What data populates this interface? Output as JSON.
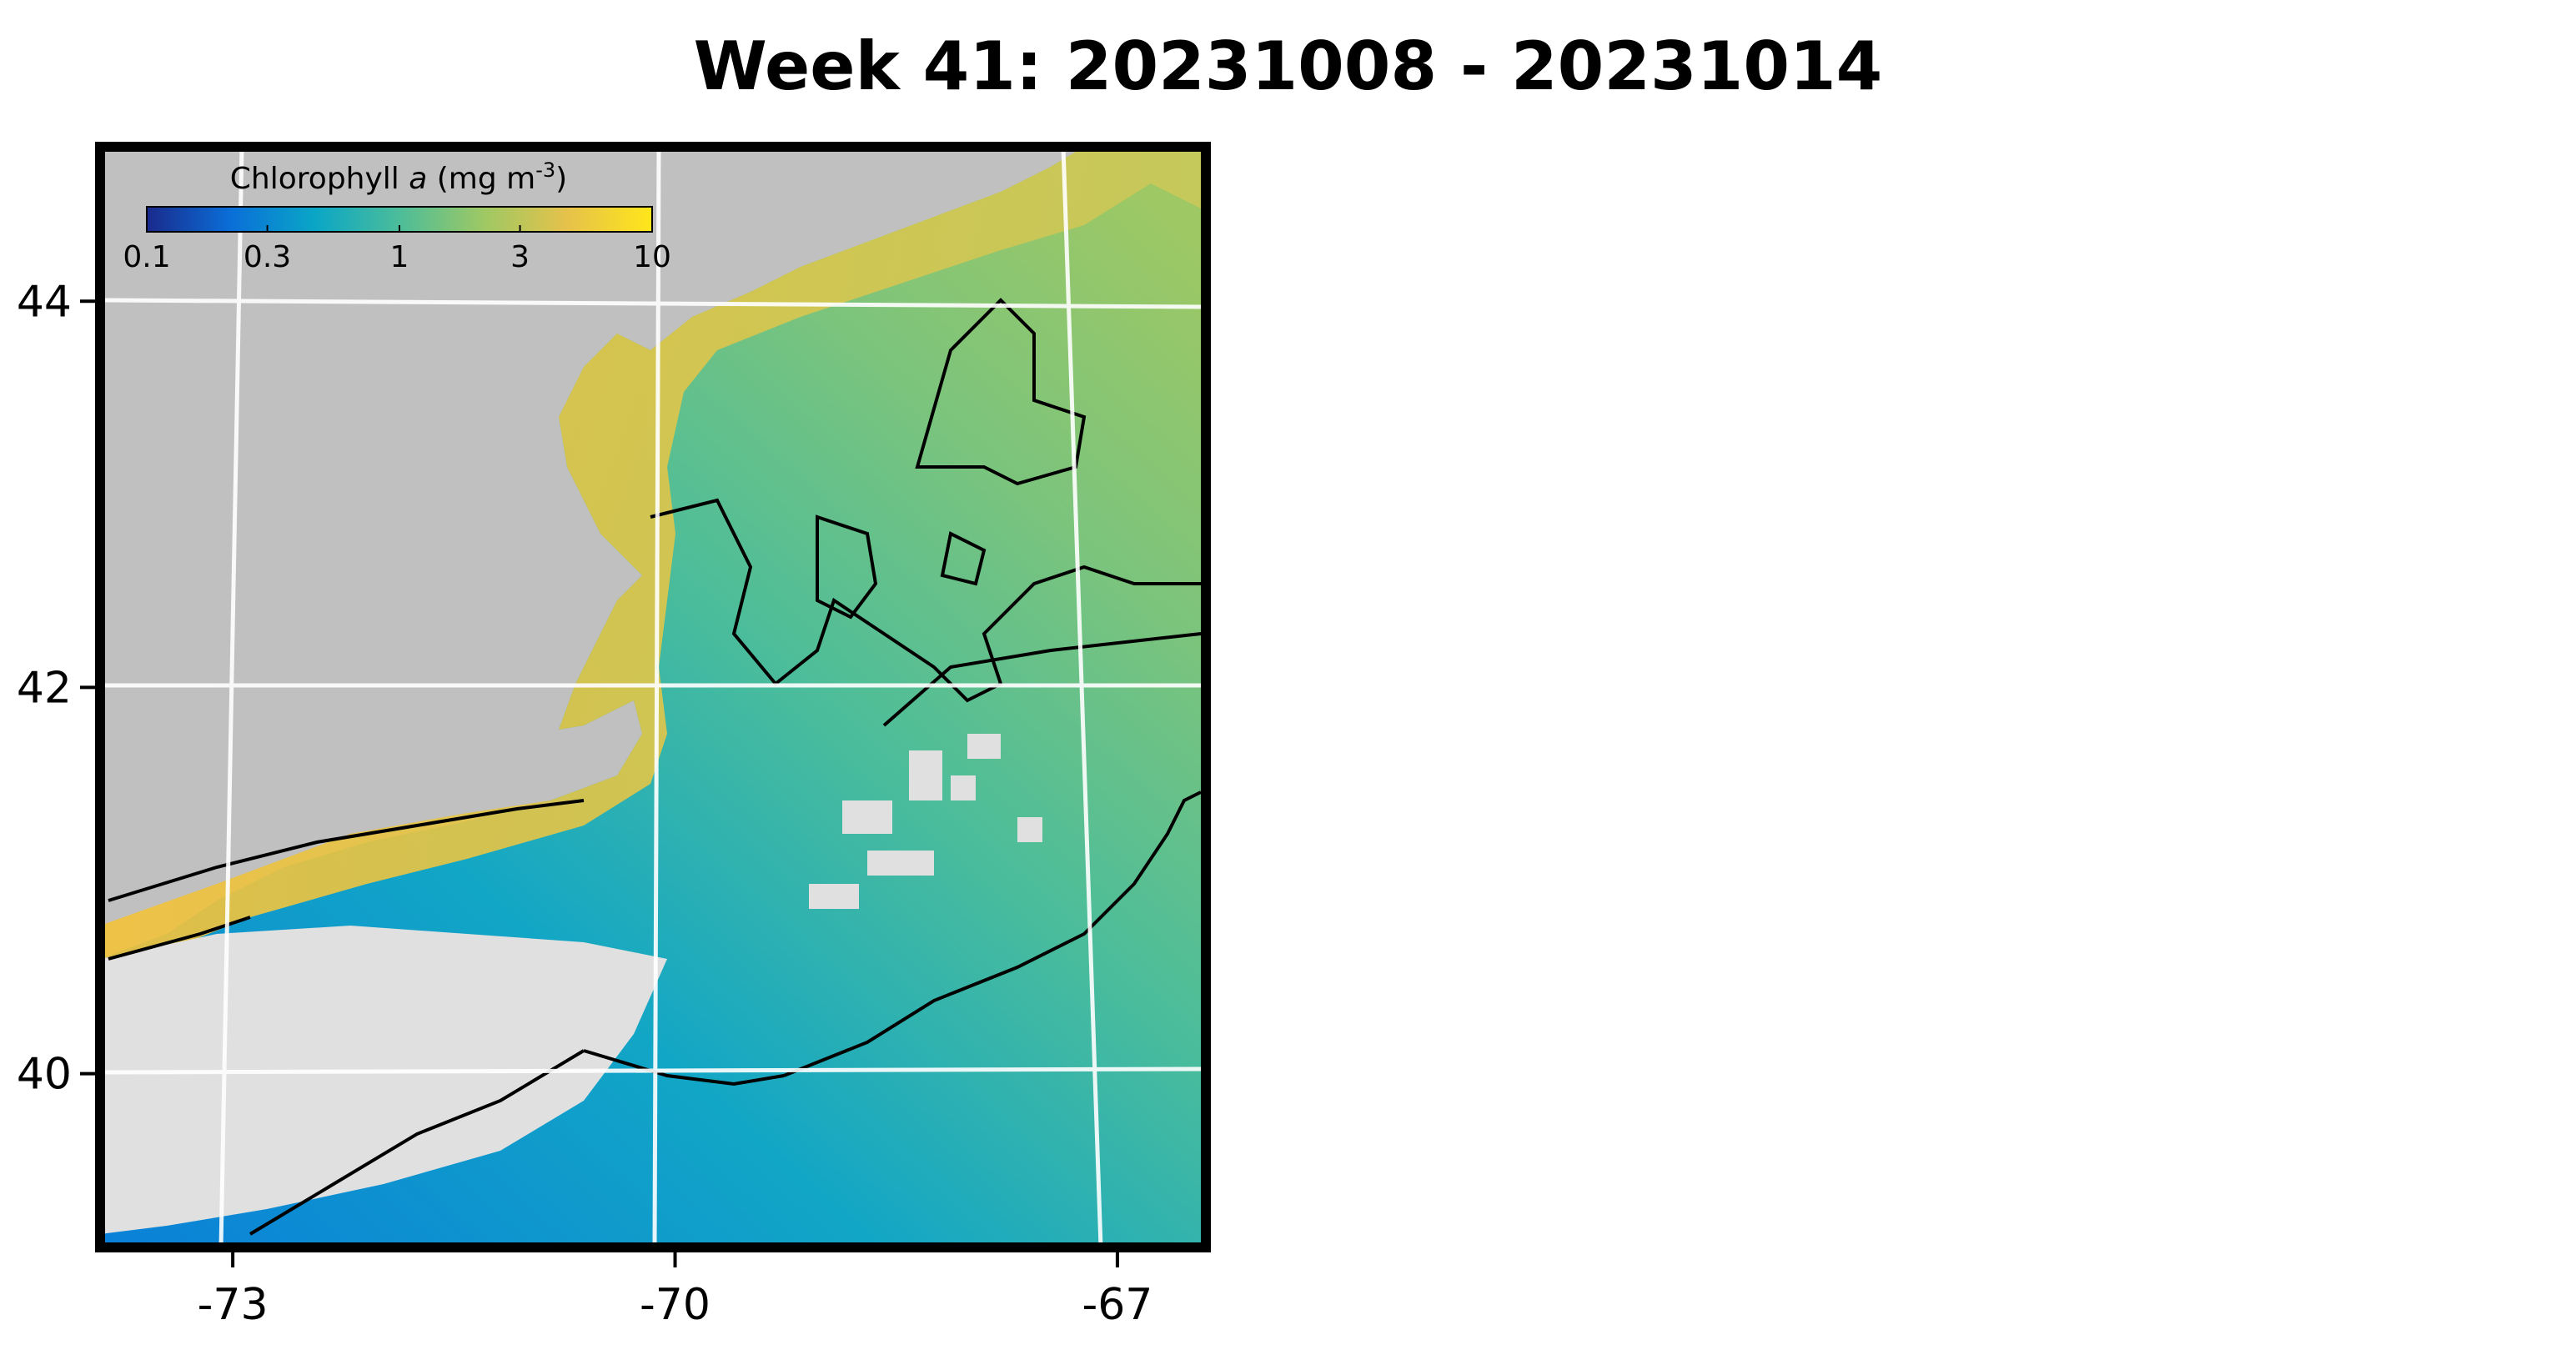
{
  "title": "Week 41: 20231008 - 20231014",
  "colorbar": {
    "label_prefix": "Chlorophyll ",
    "label_var": "a",
    "label_units": " (mg m",
    "label_exp": "-3",
    "label_close": ")",
    "ticks": [
      {
        "value": 0.1,
        "label": "0.1"
      },
      {
        "value": 0.3,
        "label": "0.3"
      },
      {
        "value": 1,
        "label": "1"
      },
      {
        "value": 3,
        "label": "3"
      },
      {
        "value": 10,
        "label": "10"
      }
    ],
    "range": [
      0.1,
      10
    ],
    "scale": "log",
    "colors": [
      "#1a2a8c",
      "#0a6fd8",
      "#0aa6c6",
      "#4cbd9a",
      "#9ec864",
      "#e6c24a",
      "#ffe61a"
    ]
  },
  "axes": {
    "lon_ticks": [
      {
        "value": -73,
        "label": "-73"
      },
      {
        "value": -70,
        "label": "-70"
      },
      {
        "value": -67,
        "label": "-67"
      }
    ],
    "lat_ticks": [
      {
        "value": 44,
        "label": "44"
      },
      {
        "value": 42,
        "label": "42"
      },
      {
        "value": 40,
        "label": "40"
      }
    ],
    "lon_range": [
      -73.9,
      -66.4
    ],
    "lat_range": [
      39.1,
      44.8
    ]
  },
  "colors": {
    "land": "#c0c0c0",
    "no_data": "#e0e0e0",
    "frame": "#000000",
    "grid": "#ffffff",
    "coast_line": "#000000"
  }
}
